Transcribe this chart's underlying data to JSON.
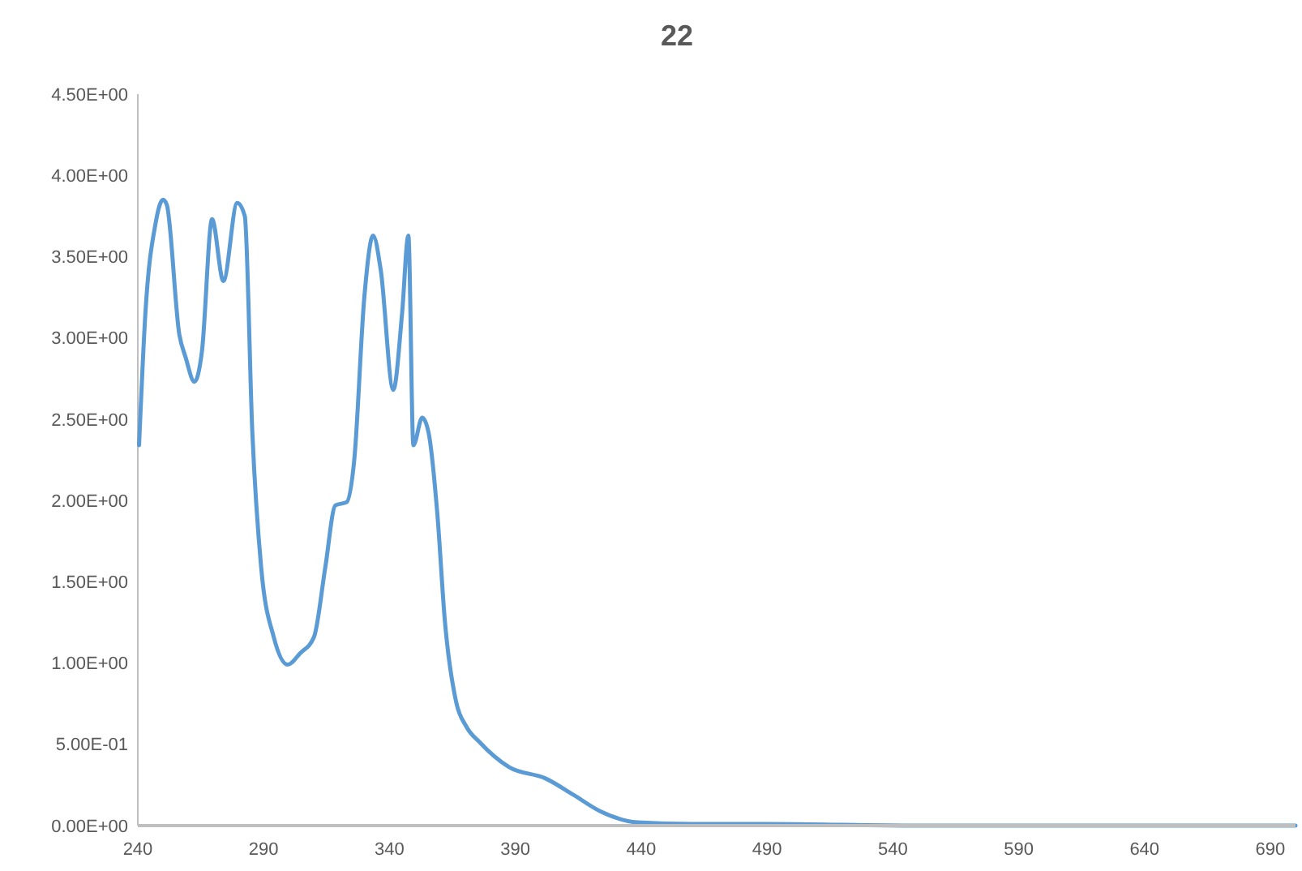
{
  "chart_data": {
    "type": "line",
    "title": "22",
    "xlim": [
      240,
      700
    ],
    "xticks": [
      240,
      290,
      340,
      390,
      440,
      490,
      540,
      590,
      640,
      690
    ],
    "ylim": [
      0,
      4.5
    ],
    "yticks": [
      {
        "value": 0,
        "label": "0.00E+00"
      },
      {
        "value": 0.5,
        "label": "5.00E-01"
      },
      {
        "value": 1,
        "label": "1.00E+00"
      },
      {
        "value": 1.5,
        "label": "1.50E+00"
      },
      {
        "value": 2,
        "label": "2.00E+00"
      },
      {
        "value": 2.5,
        "label": "2.50E+00"
      },
      {
        "value": 3,
        "label": "3.00E+00"
      },
      {
        "value": 3.5,
        "label": "3.50E+00"
      },
      {
        "value": 4,
        "label": "4.00E+00"
      },
      {
        "value": 4.5,
        "label": "4.50E+00"
      }
    ],
    "grid": false,
    "marker": "none",
    "line_style": "solid",
    "series": [
      {
        "color": "#5b9bd5",
        "x": [
          240.5,
          243,
          247,
          250,
          251.5,
          256.5,
          259,
          262.5,
          265.5,
          269.5,
          274,
          279.5,
          282.5,
          285.5,
          289,
          294,
          299.5,
          304.5,
          310,
          314.5,
          318.5,
          323,
          326,
          330,
          333.5,
          336.5,
          341.5,
          345,
          347.5,
          349.5,
          353,
          355.5,
          359,
          362,
          366.5,
          370.5,
          376,
          387.5,
          402,
          413,
          423.5,
          438.5,
          460,
          490,
          550,
          620,
          700
        ],
        "values": [
          2.34,
          3.15,
          3.7,
          3.85,
          3.82,
          3.02,
          2.88,
          2.73,
          2.92,
          3.73,
          3.35,
          3.83,
          3.75,
          2.42,
          1.59,
          1.16,
          0.99,
          1.06,
          1.16,
          1.59,
          1.97,
          1.99,
          2.25,
          3.25,
          3.63,
          3.42,
          2.68,
          3.15,
          3.63,
          2.34,
          2.51,
          2.42,
          1.92,
          1.26,
          0.76,
          0.61,
          0.51,
          0.36,
          0.29,
          0.19,
          0.09,
          0.02,
          0.01,
          0.01,
          0,
          0,
          0
        ]
      }
    ]
  }
}
